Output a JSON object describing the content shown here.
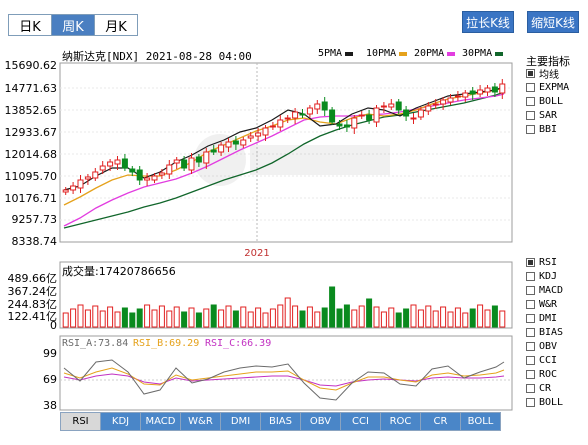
{
  "period_tabs": [
    {
      "label": "日K",
      "active": false
    },
    {
      "label": "周K",
      "active": true
    },
    {
      "label": "月K",
      "active": false
    }
  ],
  "buttons": {
    "stretch": "拉长K线",
    "shrink": "缩短K线"
  },
  "header": {
    "title": "纳斯达克[NDX] 2021-08-28 04:00",
    "ma_legend": [
      {
        "label": "5PMA",
        "color": "#1a1a1a"
      },
      {
        "label": "10PMA",
        "color": "#e5a21c"
      },
      {
        "label": "20PMA",
        "color": "#e23de0"
      },
      {
        "label": "30PMA",
        "color": "#11662b"
      }
    ]
  },
  "price_axis": [
    "15690.62",
    "14771.63",
    "13852.65",
    "12933.67",
    "12014.68",
    "11095.70",
    "10176.71",
    "9257.73",
    "8338.74"
  ],
  "year_label": "2021",
  "volume": {
    "label": "成交量:17420786656",
    "axis": [
      "489.66亿",
      "367.24亿",
      "244.83亿",
      "122.41亿",
      "0"
    ]
  },
  "rsi": {
    "legend": [
      {
        "label": "RSI_A:73.84",
        "color": "#6b6b6b"
      },
      {
        "label": "RSI_B:69.29",
        "color": "#e5a21c"
      },
      {
        "label": "RSI_C:66.39",
        "color": "#c231c2"
      }
    ],
    "axis": [
      "99",
      "69",
      "38"
    ]
  },
  "sidebar": {
    "main_title": "主要指标",
    "main_options": [
      {
        "label": "均线",
        "checked": true
      },
      {
        "label": "EXPMA",
        "checked": false
      },
      {
        "label": "BOLL",
        "checked": false
      },
      {
        "label": "SAR",
        "checked": false
      },
      {
        "label": "BBI",
        "checked": false
      }
    ],
    "sub_options": [
      {
        "label": "RSI",
        "checked": true
      },
      {
        "label": "KDJ",
        "checked": false
      },
      {
        "label": "MACD",
        "checked": false
      },
      {
        "label": "W&R",
        "checked": false
      },
      {
        "label": "DMI",
        "checked": false
      },
      {
        "label": "BIAS",
        "checked": false
      },
      {
        "label": "OBV",
        "checked": false
      },
      {
        "label": "CCI",
        "checked": false
      },
      {
        "label": "ROC",
        "checked": false
      },
      {
        "label": "CR",
        "checked": false
      },
      {
        "label": "BOLL",
        "checked": false
      }
    ]
  },
  "bottom_tabs": [
    {
      "label": "RSI",
      "active": true
    },
    {
      "label": "KDJ",
      "active": false
    },
    {
      "label": "MACD",
      "active": false
    },
    {
      "label": "W&R",
      "active": false
    },
    {
      "label": "DMI",
      "active": false
    },
    {
      "label": "BIAS",
      "active": false
    },
    {
      "label": "OBV",
      "active": false
    },
    {
      "label": "CCI",
      "active": false
    },
    {
      "label": "ROC",
      "active": false
    },
    {
      "label": "CR",
      "active": false
    },
    {
      "label": "BOLL",
      "active": false
    }
  ],
  "colors": {
    "up": "#e02020",
    "down": "#0a8a1e",
    "tab_blue": "#4a86c8",
    "accent_btn": "#3a75c4"
  }
}
